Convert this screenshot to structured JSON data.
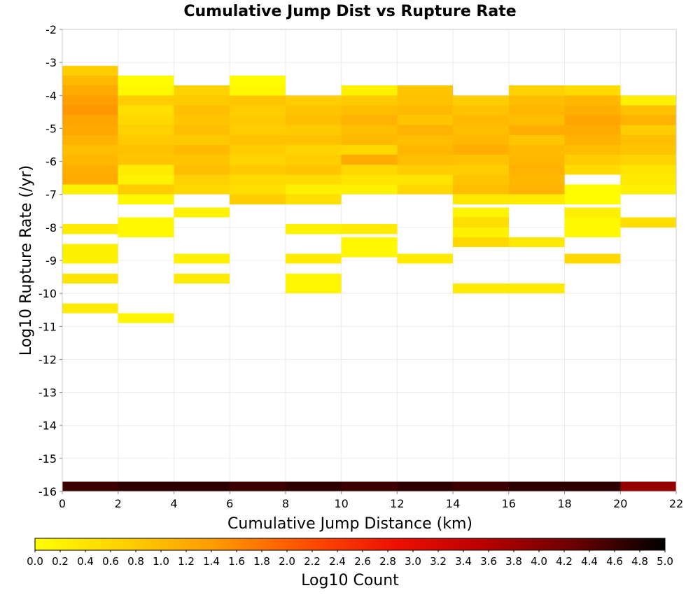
{
  "chart_data": {
    "type": "heatmap",
    "title": "Cumulative Jump Dist vs Rupture Rate",
    "xlabel": "Cumulative Jump Distance (km)",
    "ylabel": "Log10 Rupture Rate (/yr)",
    "xlim": [
      0,
      22
    ],
    "ylim": [
      -16,
      -2
    ],
    "x_ticks": [
      "0",
      "2",
      "4",
      "6",
      "8",
      "10",
      "12",
      "14",
      "16",
      "18",
      "20",
      "22"
    ],
    "y_ticks": [
      "-2",
      "-3",
      "-4",
      "-5",
      "-6",
      "-7",
      "-8",
      "-9",
      "-10",
      "-11",
      "-12",
      "-13",
      "-14",
      "-15",
      "-16"
    ],
    "grid": true,
    "colorbar": {
      "label": "Log10 Count",
      "range": [
        0,
        5
      ],
      "ticks": [
        "0.0",
        "0.2",
        "0.4",
        "0.6",
        "0.8",
        "1.0",
        "1.2",
        "1.4",
        "1.6",
        "1.8",
        "2.0",
        "2.2",
        "2.4",
        "2.6",
        "2.8",
        "3.0",
        "3.2",
        "3.4",
        "3.6",
        "3.8",
        "4.0",
        "4.2",
        "4.4",
        "4.6",
        "4.8",
        "5.0"
      ],
      "colors": [
        "#ffff00",
        "#ffd000",
        "#ff9a00",
        "#ff5000",
        "#ee1000",
        "#b80000",
        "#6a0000",
        "#000000"
      ]
    },
    "bin_size": {
      "x": 2,
      "y": 0.3
    },
    "cells": [
      {
        "x": 0,
        "y": -3.4,
        "v": 0.75
      },
      {
        "x": 0,
        "y": -3.7,
        "v": 1.0
      },
      {
        "x": 0,
        "y": -4.0,
        "v": 1.2
      },
      {
        "x": 0,
        "y": -4.3,
        "v": 1.35
      },
      {
        "x": 0,
        "y": -4.6,
        "v": 1.45
      },
      {
        "x": 0,
        "y": -4.9,
        "v": 1.3
      },
      {
        "x": 0,
        "y": -5.2,
        "v": 1.25
      },
      {
        "x": 0,
        "y": -5.5,
        "v": 1.1
      },
      {
        "x": 0,
        "y": -5.8,
        "v": 0.95
      },
      {
        "x": 0,
        "y": -6.1,
        "v": 1.05
      },
      {
        "x": 0,
        "y": -6.4,
        "v": 1.15
      },
      {
        "x": 0,
        "y": -6.7,
        "v": 1.2
      },
      {
        "x": 0,
        "y": -7.0,
        "v": 0.2
      },
      {
        "x": 0,
        "y": -8.2,
        "v": 0.3
      },
      {
        "x": 0,
        "y": -8.8,
        "v": 0.2
      },
      {
        "x": 0,
        "y": -9.1,
        "v": 0.2
      },
      {
        "x": 0,
        "y": -9.7,
        "v": 0.4
      },
      {
        "x": 0,
        "y": -10.6,
        "v": 0.3
      },
      {
        "x": 2,
        "y": -3.7,
        "v": 0.05
      },
      {
        "x": 2,
        "y": -4.0,
        "v": 0.1
      },
      {
        "x": 2,
        "y": -4.3,
        "v": 0.75
      },
      {
        "x": 2,
        "y": -4.6,
        "v": 0.5
      },
      {
        "x": 2,
        "y": -4.9,
        "v": 0.6
      },
      {
        "x": 2,
        "y": -5.2,
        "v": 0.7
      },
      {
        "x": 2,
        "y": -5.5,
        "v": 0.8
      },
      {
        "x": 2,
        "y": -5.8,
        "v": 0.9
      },
      {
        "x": 2,
        "y": -6.1,
        "v": 0.85
      },
      {
        "x": 2,
        "y": -6.4,
        "v": 0.3
      },
      {
        "x": 2,
        "y": -6.7,
        "v": 0.2
      },
      {
        "x": 2,
        "y": -7.0,
        "v": 0.75
      },
      {
        "x": 2,
        "y": -7.3,
        "v": 0.1
      },
      {
        "x": 2,
        "y": -8.0,
        "v": 0.1
      },
      {
        "x": 2,
        "y": -8.3,
        "v": 0.1
      },
      {
        "x": 2,
        "y": -10.9,
        "v": 0.15
      },
      {
        "x": 4,
        "y": -4.0,
        "v": 0.7
      },
      {
        "x": 4,
        "y": -4.3,
        "v": 0.8
      },
      {
        "x": 4,
        "y": -4.6,
        "v": 0.95
      },
      {
        "x": 4,
        "y": -4.9,
        "v": 0.85
      },
      {
        "x": 4,
        "y": -5.2,
        "v": 0.95
      },
      {
        "x": 4,
        "y": -5.5,
        "v": 0.8
      },
      {
        "x": 4,
        "y": -5.8,
        "v": 1.0
      },
      {
        "x": 4,
        "y": -6.1,
        "v": 0.85
      },
      {
        "x": 4,
        "y": -6.4,
        "v": 0.95
      },
      {
        "x": 4,
        "y": -6.7,
        "v": 0.7
      },
      {
        "x": 4,
        "y": -7.0,
        "v": 0.6
      },
      {
        "x": 4,
        "y": -7.7,
        "v": 0.2
      },
      {
        "x": 4,
        "y": -9.1,
        "v": 0.2
      },
      {
        "x": 4,
        "y": -9.7,
        "v": 0.3
      },
      {
        "x": 6,
        "y": -3.7,
        "v": 0.05
      },
      {
        "x": 6,
        "y": -4.0,
        "v": 0.1
      },
      {
        "x": 6,
        "y": -4.3,
        "v": 0.85
      },
      {
        "x": 6,
        "y": -4.6,
        "v": 0.75
      },
      {
        "x": 6,
        "y": -4.9,
        "v": 0.8
      },
      {
        "x": 6,
        "y": -5.2,
        "v": 0.75
      },
      {
        "x": 6,
        "y": -5.5,
        "v": 0.9
      },
      {
        "x": 6,
        "y": -5.8,
        "v": 0.75
      },
      {
        "x": 6,
        "y": -6.1,
        "v": 0.65
      },
      {
        "x": 6,
        "y": -6.4,
        "v": 0.8
      },
      {
        "x": 6,
        "y": -6.7,
        "v": 0.55
      },
      {
        "x": 6,
        "y": -7.0,
        "v": 0.5
      },
      {
        "x": 6,
        "y": -7.3,
        "v": 0.75
      },
      {
        "x": 8,
        "y": -4.3,
        "v": 0.75
      },
      {
        "x": 8,
        "y": -4.6,
        "v": 0.85
      },
      {
        "x": 8,
        "y": -4.9,
        "v": 0.95
      },
      {
        "x": 8,
        "y": -5.2,
        "v": 0.8
      },
      {
        "x": 8,
        "y": -5.5,
        "v": 0.9
      },
      {
        "x": 8,
        "y": -5.8,
        "v": 0.65
      },
      {
        "x": 8,
        "y": -6.1,
        "v": 0.75
      },
      {
        "x": 8,
        "y": -6.4,
        "v": 0.85
      },
      {
        "x": 8,
        "y": -6.7,
        "v": 0.55
      },
      {
        "x": 8,
        "y": -7.0,
        "v": 0.2
      },
      {
        "x": 8,
        "y": -7.3,
        "v": 0.5
      },
      {
        "x": 8,
        "y": -8.2,
        "v": 0.2
      },
      {
        "x": 8,
        "y": -9.1,
        "v": 0.3
      },
      {
        "x": 8,
        "y": -9.7,
        "v": 0.15
      },
      {
        "x": 8,
        "y": -10.0,
        "v": 0.15
      },
      {
        "x": 10,
        "y": -4.0,
        "v": 0.2
      },
      {
        "x": 10,
        "y": -4.3,
        "v": 0.8
      },
      {
        "x": 10,
        "y": -4.6,
        "v": 0.95
      },
      {
        "x": 10,
        "y": -4.9,
        "v": 1.1
      },
      {
        "x": 10,
        "y": -5.2,
        "v": 0.95
      },
      {
        "x": 10,
        "y": -5.5,
        "v": 1.0
      },
      {
        "x": 10,
        "y": -5.8,
        "v": 0.6
      },
      {
        "x": 10,
        "y": -6.1,
        "v": 1.2
      },
      {
        "x": 10,
        "y": -6.4,
        "v": 0.6
      },
      {
        "x": 10,
        "y": -6.7,
        "v": 0.4
      },
      {
        "x": 10,
        "y": -7.0,
        "v": 0.2
      },
      {
        "x": 10,
        "y": -8.2,
        "v": 0.3
      },
      {
        "x": 10,
        "y": -8.6,
        "v": 0.1
      },
      {
        "x": 10,
        "y": -8.9,
        "v": 0.1
      },
      {
        "x": 12,
        "y": -4.0,
        "v": 0.85
      },
      {
        "x": 12,
        "y": -4.3,
        "v": 0.9
      },
      {
        "x": 12,
        "y": -4.6,
        "v": 1.0
      },
      {
        "x": 12,
        "y": -4.9,
        "v": 0.85
      },
      {
        "x": 12,
        "y": -5.2,
        "v": 1.1
      },
      {
        "x": 12,
        "y": -5.5,
        "v": 0.95
      },
      {
        "x": 12,
        "y": -5.8,
        "v": 1.05
      },
      {
        "x": 12,
        "y": -6.1,
        "v": 0.95
      },
      {
        "x": 12,
        "y": -6.4,
        "v": 0.75
      },
      {
        "x": 12,
        "y": -6.7,
        "v": 0.4
      },
      {
        "x": 12,
        "y": -7.0,
        "v": 0.6
      },
      {
        "x": 12,
        "y": -9.1,
        "v": 0.3
      },
      {
        "x": 14,
        "y": -4.3,
        "v": 0.75
      },
      {
        "x": 14,
        "y": -4.6,
        "v": 0.9
      },
      {
        "x": 14,
        "y": -4.9,
        "v": 1.0
      },
      {
        "x": 14,
        "y": -5.2,
        "v": 0.95
      },
      {
        "x": 14,
        "y": -5.5,
        "v": 1.05
      },
      {
        "x": 14,
        "y": -5.8,
        "v": 1.15
      },
      {
        "x": 14,
        "y": -6.1,
        "v": 0.9
      },
      {
        "x": 14,
        "y": -6.4,
        "v": 0.75
      },
      {
        "x": 14,
        "y": -6.7,
        "v": 0.85
      },
      {
        "x": 14,
        "y": -7.0,
        "v": 0.95
      },
      {
        "x": 14,
        "y": -7.3,
        "v": 0.35
      },
      {
        "x": 14,
        "y": -7.7,
        "v": 0.15
      },
      {
        "x": 14,
        "y": -8.0,
        "v": 0.5
      },
      {
        "x": 14,
        "y": -8.3,
        "v": 0.2
      },
      {
        "x": 14,
        "y": -8.6,
        "v": 0.6
      },
      {
        "x": 14,
        "y": -10.0,
        "v": 0.3
      },
      {
        "x": 16,
        "y": -4.0,
        "v": 0.7
      },
      {
        "x": 16,
        "y": -4.3,
        "v": 0.95
      },
      {
        "x": 16,
        "y": -4.6,
        "v": 1.05
      },
      {
        "x": 16,
        "y": -4.9,
        "v": 0.95
      },
      {
        "x": 16,
        "y": -5.2,
        "v": 1.15
      },
      {
        "x": 16,
        "y": -5.5,
        "v": 0.85
      },
      {
        "x": 16,
        "y": -5.8,
        "v": 1.0
      },
      {
        "x": 16,
        "y": -6.1,
        "v": 1.05
      },
      {
        "x": 16,
        "y": -6.4,
        "v": 1.1
      },
      {
        "x": 16,
        "y": -6.7,
        "v": 1.05
      },
      {
        "x": 16,
        "y": -7.0,
        "v": 1.1
      },
      {
        "x": 16,
        "y": -7.3,
        "v": 0.3
      },
      {
        "x": 16,
        "y": -8.6,
        "v": 0.35
      },
      {
        "x": 16,
        "y": -10.0,
        "v": 0.3
      },
      {
        "x": 18,
        "y": -4.0,
        "v": 0.55
      },
      {
        "x": 18,
        "y": -4.3,
        "v": 1.05
      },
      {
        "x": 18,
        "y": -4.6,
        "v": 1.15
      },
      {
        "x": 18,
        "y": -4.9,
        "v": 1.3
      },
      {
        "x": 18,
        "y": -5.2,
        "v": 1.2
      },
      {
        "x": 18,
        "y": -5.5,
        "v": 1.1
      },
      {
        "x": 18,
        "y": -5.8,
        "v": 0.95
      },
      {
        "x": 18,
        "y": -6.1,
        "v": 0.75
      },
      {
        "x": 18,
        "y": -6.4,
        "v": 0.55
      },
      {
        "x": 18,
        "y": -7.0,
        "v": 0.05
      },
      {
        "x": 18,
        "y": -7.3,
        "v": 0.05
      },
      {
        "x": 18,
        "y": -7.7,
        "v": 0.25
      },
      {
        "x": 18,
        "y": -8.0,
        "v": 0.1
      },
      {
        "x": 18,
        "y": -8.3,
        "v": 0.1
      },
      {
        "x": 18,
        "y": -9.1,
        "v": 0.6
      },
      {
        "x": 20,
        "y": -4.3,
        "v": 0.25
      },
      {
        "x": 20,
        "y": -4.6,
        "v": 0.9
      },
      {
        "x": 20,
        "y": -4.9,
        "v": 1.1
      },
      {
        "x": 20,
        "y": -5.2,
        "v": 0.75
      },
      {
        "x": 20,
        "y": -5.5,
        "v": 0.95
      },
      {
        "x": 20,
        "y": -5.8,
        "v": 0.85
      },
      {
        "x": 20,
        "y": -6.1,
        "v": 0.65
      },
      {
        "x": 20,
        "y": -6.4,
        "v": 0.4
      },
      {
        "x": 20,
        "y": -6.7,
        "v": 0.35
      },
      {
        "x": 20,
        "y": -7.0,
        "v": 0.2
      },
      {
        "x": 20,
        "y": -8.0,
        "v": 0.5
      },
      {
        "x": 0,
        "y": -16.0,
        "v": 4.6
      },
      {
        "x": 2,
        "y": -16.0,
        "v": 4.7
      },
      {
        "x": 4,
        "y": -16.0,
        "v": 4.7
      },
      {
        "x": 6,
        "y": -16.0,
        "v": 4.6
      },
      {
        "x": 8,
        "y": -16.0,
        "v": 4.7
      },
      {
        "x": 10,
        "y": -16.0,
        "v": 4.6
      },
      {
        "x": 12,
        "y": -16.0,
        "v": 4.7
      },
      {
        "x": 14,
        "y": -16.0,
        "v": 4.6
      },
      {
        "x": 16,
        "y": -16.0,
        "v": 4.7
      },
      {
        "x": 18,
        "y": -16.0,
        "v": 4.7
      },
      {
        "x": 20,
        "y": -16.0,
        "v": 3.9
      }
    ]
  }
}
